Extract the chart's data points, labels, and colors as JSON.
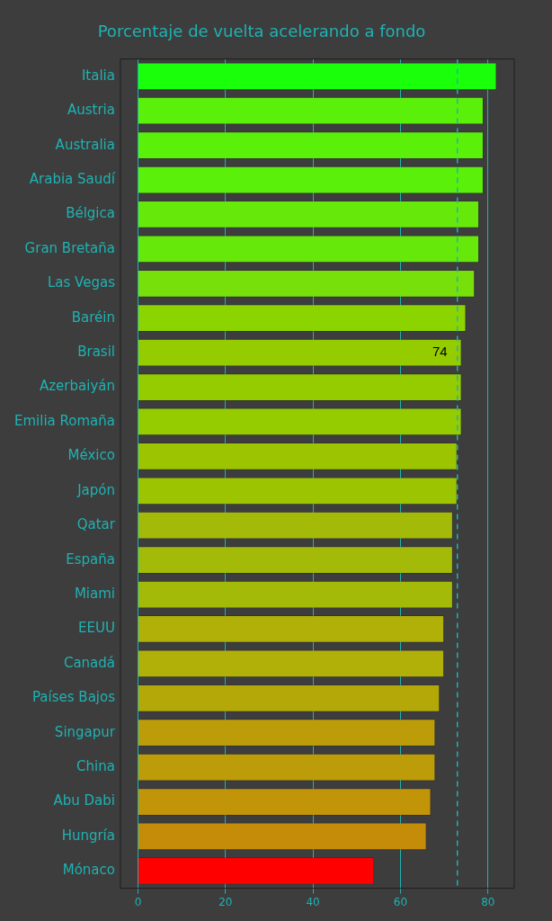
{
  "chart_data": {
    "type": "bar",
    "orientation": "horizontal",
    "title": "Porcentaje de vuelta acelerando a fondo",
    "categories": [
      "Italia",
      "Austria",
      "Australia",
      "Arabia Saudí",
      "Bélgica",
      "Gran Bretaña",
      "Las Vegas",
      "Baréin",
      "Brasil",
      "Azerbaiyán",
      "Emilia Romaña",
      "México",
      "Japón",
      "Qatar",
      "España",
      "Miami",
      "EEUU",
      "Canadá",
      "Países Bajos",
      "Singapur",
      "China",
      "Abu Dabi",
      "Hungría",
      "Mónaco"
    ],
    "values": [
      82,
      79,
      79,
      79,
      78,
      78,
      77,
      75,
      74,
      74,
      74,
      73,
      73,
      72,
      72,
      72,
      70,
      70,
      69,
      68,
      68,
      67,
      66,
      54
    ],
    "value_labels": [
      null,
      null,
      null,
      null,
      null,
      null,
      null,
      null,
      "74",
      null,
      null,
      null,
      null,
      null,
      null,
      null,
      null,
      null,
      null,
      null,
      null,
      null,
      null,
      null
    ],
    "colors": [
      "#1aff0a",
      "#5af00a",
      "#5af00a",
      "#5af00a",
      "#66e80a",
      "#66e80a",
      "#77e00a",
      "#8cd400",
      "#94cc00",
      "#94cc00",
      "#94cc00",
      "#9cc400",
      "#9cc400",
      "#a3bb08",
      "#a3bb08",
      "#a3bb08",
      "#b0b008",
      "#b0b008",
      "#b3a808",
      "#bc9c08",
      "#bc9c08",
      "#c29408",
      "#c48c08",
      "#ff0000"
    ],
    "xlim": [
      -4,
      86
    ],
    "xticks": [
      0,
      20,
      40,
      60,
      80
    ],
    "grid": "x",
    "legend": false,
    "ref_lines": [
      {
        "axis": "x",
        "value": 73,
        "color": "#20b2b2",
        "line_style": "dashed"
      }
    ]
  }
}
